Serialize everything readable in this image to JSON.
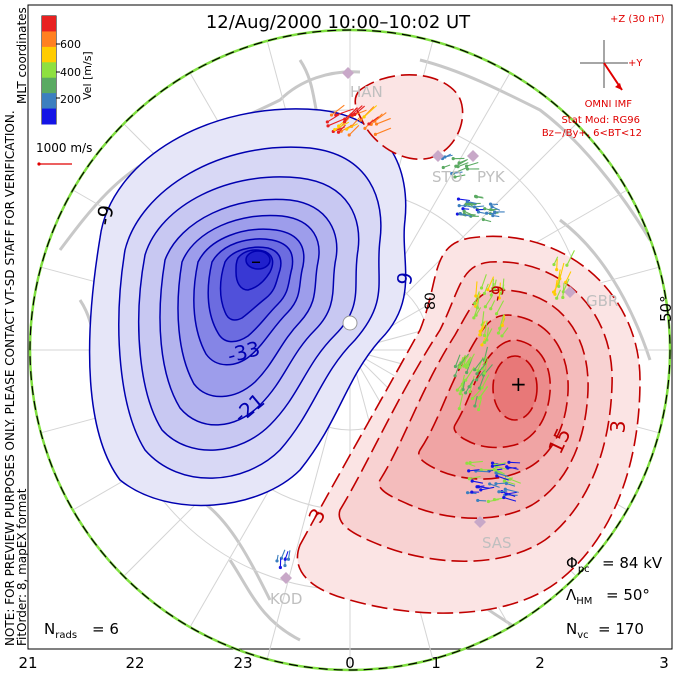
{
  "title": "12/Aug/2000 10:00–10:02 UT",
  "side_note_1": "NOTE: FOR PREVIEW PURPOSES ONLY. PLEASE CONTACT VT-SD STAFF FOR VERIFICATION.",
  "side_note_2": "FitOrder: 8, mapEX format",
  "colorbar": {
    "title": "MLT coordinates",
    "label": "Vel [m/s]",
    "ticks": [
      "200",
      "400",
      "600"
    ],
    "colors": [
      "#1515e6",
      "#3c7fbf",
      "#5aaa62",
      "#8ee040",
      "#ffcc00",
      "#ff8020",
      "#e82020"
    ]
  },
  "scale_vector_label": "1000 m/s",
  "imf": {
    "z_label": "+Z (30 nT)",
    "y_label": "+Y",
    "source": "OMNI IMF",
    "model": "Stat Mod: RG96",
    "conditions": "Bz−/By+, 6<BT<12"
  },
  "stats": {
    "phi_pc": "84 kV",
    "lambda_hm": "50°",
    "n_vc": "170",
    "n_rads": "6"
  },
  "mlt_ticks": [
    "21",
    "22",
    "23",
    "0",
    "1",
    "2",
    "3"
  ],
  "latitude_labels": [
    "80",
    "50°"
  ],
  "radars": [
    "HAN",
    "STO",
    "PYK",
    "GBR",
    "SAS",
    "KOD"
  ],
  "contours": {
    "negative_labels": [
      "-9",
      "-33",
      "-21",
      "9"
    ],
    "positive_labels": [
      "3",
      "15",
      "3",
      "-9"
    ],
    "min_marker": "–",
    "max_marker": "+"
  }
}
